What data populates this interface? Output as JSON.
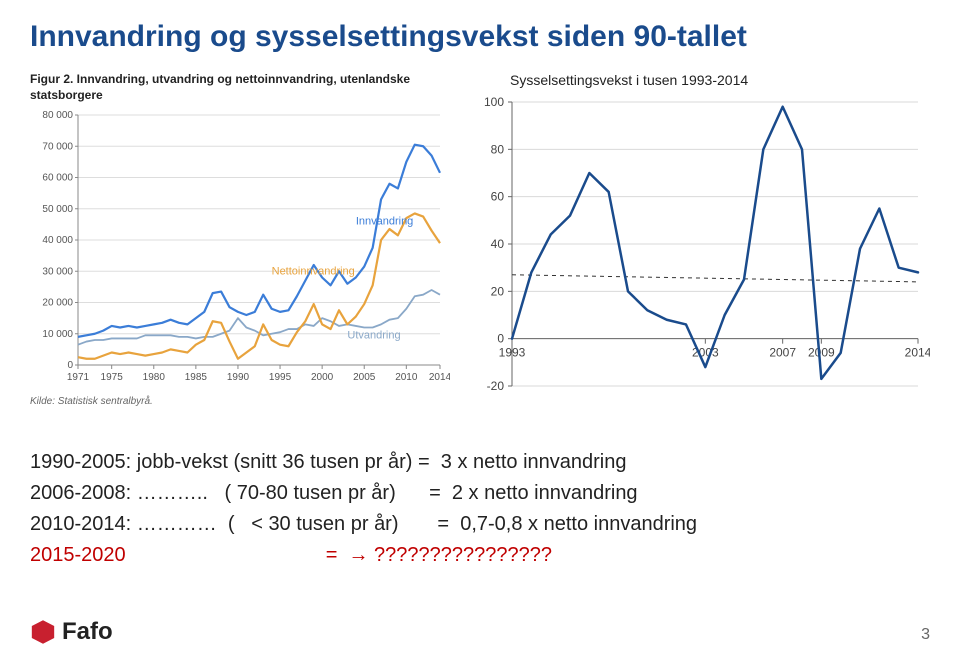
{
  "title": "Innvandring og sysselsettingsvekst siden 90-tallet",
  "left_figure": {
    "caption": "Figur 2. Innvandring, utvandring og nettoinnvandring, utenlandske statsborgere",
    "source": "Kilde: Statistisk sentralbyrå.",
    "type": "line",
    "x_ticks": [
      1971,
      1975,
      1980,
      1985,
      1990,
      1995,
      2000,
      2005,
      2010,
      2014
    ],
    "y_ticks": [
      0,
      10000,
      20000,
      30000,
      40000,
      50000,
      60000,
      70000,
      80000
    ],
    "y_tick_labels": [
      "0",
      "10 000",
      "20 000",
      "30 000",
      "40 000",
      "50 000",
      "60 000",
      "70 000",
      "80 000"
    ],
    "xlim": [
      1971,
      2014
    ],
    "ylim": [
      0,
      80000
    ],
    "background_color": "#ffffff",
    "axis_color": "#888888",
    "grid_color": "#dddddd",
    "tick_fontsize": 10,
    "series": {
      "innvandring": {
        "label": "Innvandring",
        "color": "#3b7dd8",
        "width": 2.2,
        "data": [
          [
            1971,
            9000
          ],
          [
            1972,
            9500
          ],
          [
            1973,
            10000
          ],
          [
            1974,
            11000
          ],
          [
            1975,
            12500
          ],
          [
            1976,
            12000
          ],
          [
            1977,
            12500
          ],
          [
            1978,
            12000
          ],
          [
            1979,
            12500
          ],
          [
            1980,
            13000
          ],
          [
            1981,
            13500
          ],
          [
            1982,
            14500
          ],
          [
            1983,
            13500
          ],
          [
            1984,
            13000
          ],
          [
            1985,
            15000
          ],
          [
            1986,
            17000
          ],
          [
            1987,
            23000
          ],
          [
            1988,
            23500
          ],
          [
            1989,
            18500
          ],
          [
            1990,
            17000
          ],
          [
            1991,
            16000
          ],
          [
            1992,
            17000
          ],
          [
            1993,
            22500
          ],
          [
            1994,
            18000
          ],
          [
            1995,
            17000
          ],
          [
            1996,
            17500
          ],
          [
            1997,
            22000
          ],
          [
            1998,
            27000
          ],
          [
            1999,
            32000
          ],
          [
            2000,
            28000
          ],
          [
            2001,
            25500
          ],
          [
            2002,
            30000
          ],
          [
            2003,
            26000
          ],
          [
            2004,
            28000
          ],
          [
            2005,
            31500
          ],
          [
            2006,
            37500
          ],
          [
            2007,
            53000
          ],
          [
            2008,
            58000
          ],
          [
            2009,
            56500
          ],
          [
            2010,
            65000
          ],
          [
            2011,
            70500
          ],
          [
            2012,
            70000
          ],
          [
            2013,
            67000
          ],
          [
            2014,
            61500
          ]
        ]
      },
      "netto": {
        "label": "Nettoinnvandring",
        "color": "#e8a33d",
        "width": 2.2,
        "data": [
          [
            1971,
            2500
          ],
          [
            1972,
            2000
          ],
          [
            1973,
            2000
          ],
          [
            1974,
            3000
          ],
          [
            1975,
            4000
          ],
          [
            1976,
            3500
          ],
          [
            1977,
            4000
          ],
          [
            1978,
            3500
          ],
          [
            1979,
            3000
          ],
          [
            1980,
            3500
          ],
          [
            1981,
            4000
          ],
          [
            1982,
            5000
          ],
          [
            1983,
            4500
          ],
          [
            1984,
            4000
          ],
          [
            1985,
            6500
          ],
          [
            1986,
            8000
          ],
          [
            1987,
            14000
          ],
          [
            1988,
            13500
          ],
          [
            1989,
            7500
          ],
          [
            1990,
            2000
          ],
          [
            1991,
            4000
          ],
          [
            1992,
            6000
          ],
          [
            1993,
            13000
          ],
          [
            1994,
            8000
          ],
          [
            1995,
            6500
          ],
          [
            1996,
            6000
          ],
          [
            1997,
            10500
          ],
          [
            1998,
            14000
          ],
          [
            1999,
            19500
          ],
          [
            2000,
            13000
          ],
          [
            2001,
            11500
          ],
          [
            2002,
            17500
          ],
          [
            2003,
            13000
          ],
          [
            2004,
            15500
          ],
          [
            2005,
            19500
          ],
          [
            2006,
            25500
          ],
          [
            2007,
            40000
          ],
          [
            2008,
            43500
          ],
          [
            2009,
            41500
          ],
          [
            2010,
            47000
          ],
          [
            2011,
            48500
          ],
          [
            2012,
            47500
          ],
          [
            2013,
            43000
          ],
          [
            2014,
            39000
          ]
        ]
      },
      "utvandring": {
        "label": "Utvandring",
        "color": "#8aa8c8",
        "width": 1.8,
        "data": [
          [
            1971,
            6500
          ],
          [
            1972,
            7500
          ],
          [
            1973,
            8000
          ],
          [
            1974,
            8000
          ],
          [
            1975,
            8500
          ],
          [
            1976,
            8500
          ],
          [
            1977,
            8500
          ],
          [
            1978,
            8500
          ],
          [
            1979,
            9500
          ],
          [
            1980,
            9500
          ],
          [
            1981,
            9500
          ],
          [
            1982,
            9500
          ],
          [
            1983,
            9000
          ],
          [
            1984,
            9000
          ],
          [
            1985,
            8500
          ],
          [
            1986,
            9000
          ],
          [
            1987,
            9000
          ],
          [
            1988,
            10000
          ],
          [
            1989,
            11000
          ],
          [
            1990,
            15000
          ],
          [
            1991,
            12000
          ],
          [
            1992,
            11000
          ],
          [
            1993,
            9500
          ],
          [
            1994,
            10000
          ],
          [
            1995,
            10500
          ],
          [
            1996,
            11500
          ],
          [
            1997,
            11500
          ],
          [
            1998,
            13000
          ],
          [
            1999,
            12500
          ],
          [
            2000,
            15000
          ],
          [
            2001,
            14000
          ],
          [
            2002,
            12500
          ],
          [
            2003,
            13000
          ],
          [
            2004,
            12500
          ],
          [
            2005,
            12000
          ],
          [
            2006,
            12000
          ],
          [
            2007,
            13000
          ],
          [
            2008,
            14500
          ],
          [
            2009,
            15000
          ],
          [
            2010,
            18000
          ],
          [
            2011,
            22000
          ],
          [
            2012,
            22500
          ],
          [
            2013,
            24000
          ],
          [
            2014,
            22500
          ]
        ]
      }
    },
    "series_label_fontsize": 11
  },
  "right_figure": {
    "title": "Sysselsettingsvekst i tusen 1993-2014",
    "type": "line",
    "x_ticks": [
      1993,
      2003,
      2007,
      2009,
      2014
    ],
    "y_ticks": [
      -20,
      0,
      20,
      40,
      60,
      80,
      100
    ],
    "xlim": [
      1993,
      2014
    ],
    "ylim": [
      -20,
      100
    ],
    "background_color": "#ffffff",
    "axis_color": "#666666",
    "grid_color": "#d9d9d9",
    "tick_fontsize": 12,
    "trend": {
      "color": "#333333",
      "dash": "4,4",
      "width": 1,
      "from": [
        1993,
        27
      ],
      "to": [
        2014,
        24
      ]
    },
    "series": {
      "color": "#1a4b8c",
      "width": 2.5,
      "data": [
        [
          1993,
          0
        ],
        [
          1994,
          28
        ],
        [
          1995,
          44
        ],
        [
          1996,
          52
        ],
        [
          1997,
          70
        ],
        [
          1998,
          62
        ],
        [
          1999,
          20
        ],
        [
          2000,
          12
        ],
        [
          2001,
          8
        ],
        [
          2002,
          6
        ],
        [
          2003,
          -12
        ],
        [
          2004,
          10
        ],
        [
          2005,
          25
        ],
        [
          2006,
          80
        ],
        [
          2007,
          98
        ],
        [
          2008,
          80
        ],
        [
          2009,
          -17
        ],
        [
          2010,
          -6
        ],
        [
          2011,
          38
        ],
        [
          2012,
          55
        ],
        [
          2013,
          30
        ],
        [
          2014,
          28
        ]
      ]
    }
  },
  "bullets": {
    "rows": [
      {
        "left": "1990-2005: jobb-vekst (snitt 36 tusen pr år)",
        "eq": "=",
        "right": "3 x netto innvandring",
        "red": false
      },
      {
        "left": "2006-2008: ………..   ( 70-80 tusen pr år)",
        "eq": "=",
        "right": "2 x netto innvandring",
        "red": false
      },
      {
        "left": "2010-2014: …………  (   < 30 tusen pr år)",
        "eq": "=",
        "right": "0,7-0,8 x netto innvandring",
        "red": false
      },
      {
        "left": "2015-2020",
        "eq": "=",
        "right": "→ ????????????????",
        "red": true
      }
    ]
  },
  "logo_text": "Fafo",
  "logo_color": "#c8202f",
  "page_number": "3"
}
